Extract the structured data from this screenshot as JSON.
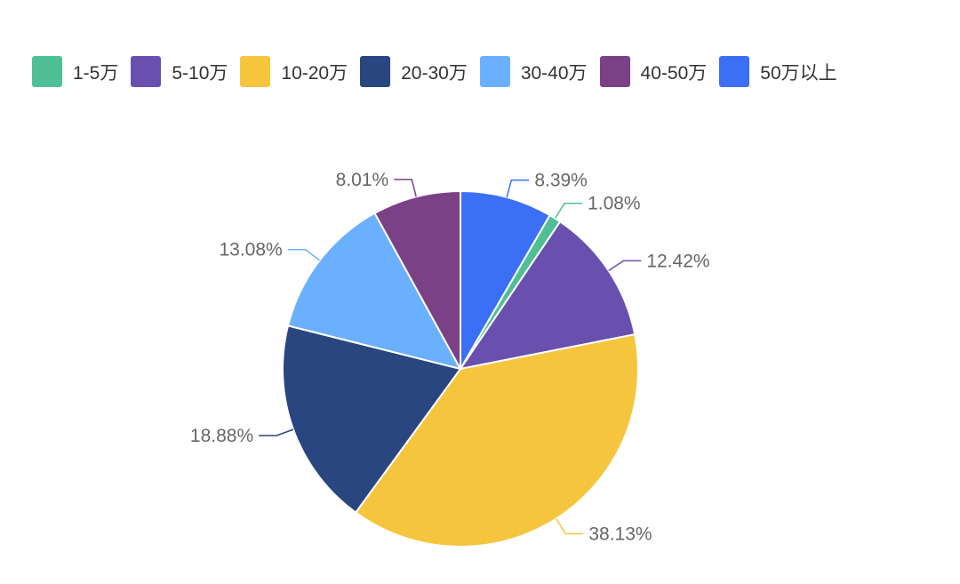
{
  "chart_data": {
    "type": "pie",
    "title": "",
    "start": "top, clockwise",
    "legend_position": "top",
    "slices": [
      {
        "name": "50万以上",
        "value": 8.39,
        "label": "8.39%",
        "color": "#3b6ff5"
      },
      {
        "name": "1-5万",
        "value": 1.08,
        "label": "1.08%",
        "color": "#4fbf96"
      },
      {
        "name": "5-10万",
        "value": 12.42,
        "label": "12.42%",
        "color": "#6a50ae"
      },
      {
        "name": "10-20万",
        "value": 38.13,
        "label": "38.13%",
        "color": "#f6c53e"
      },
      {
        "name": "20-30万",
        "value": 18.88,
        "label": "18.88%",
        "color": "#2a4680"
      },
      {
        "name": "30-40万",
        "value": 13.08,
        "label": "13.08%",
        "color": "#6ab0fe"
      },
      {
        "name": "40-50万",
        "value": 8.01,
        "label": "8.01%",
        "color": "#7b4186"
      }
    ],
    "legend": [
      {
        "name": "1-5万",
        "color": "#4fbf96"
      },
      {
        "name": "5-10万",
        "color": "#6a50ae"
      },
      {
        "name": "10-20万",
        "color": "#f6c53e"
      },
      {
        "name": "20-30万",
        "color": "#2a4680"
      },
      {
        "name": "30-40万",
        "color": "#6ab0fe"
      },
      {
        "name": "40-50万",
        "color": "#7b4186"
      },
      {
        "name": "50万以上",
        "color": "#3b6ff5"
      }
    ]
  }
}
